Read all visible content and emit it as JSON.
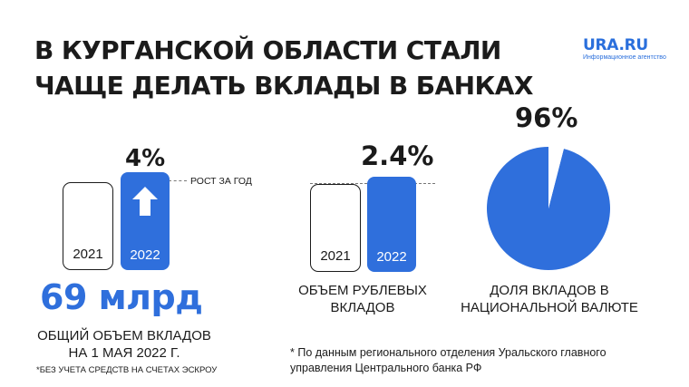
{
  "header": {
    "title_line1": "В КУРГАНСКОЙ ОБЛАСТИ СТАЛИ",
    "title_line2": "ЧАЩЕ ДЕЛАТЬ ВКЛАДЫ В БАНКАХ",
    "logo_text": "URA.RU",
    "logo_sub": "Информационное агентство"
  },
  "colors": {
    "accent": "#2f6fdc",
    "ink": "#1b1b1b",
    "background": "#ffffff"
  },
  "chart_data": [
    {
      "type": "bar",
      "categories": [
        "2021",
        "2022"
      ],
      "values": [
        100,
        104
      ],
      "value_label": "4%",
      "annotation": "РОСТ ЗА ГОД",
      "icon": "arrow-up-icon",
      "headline_value": "69 млрд",
      "caption_line1": "ОБЩИЙ ОБЪЕМ ВКЛАДОВ",
      "caption_line2": "НА 1 МАЯ 2022 Г.",
      "note": "*БЕЗ УЧЕТА СРЕДСТВ НА СЧЕТАХ ЭСКРОУ"
    },
    {
      "type": "bar",
      "categories": [
        "2021",
        "2022"
      ],
      "values": [
        100,
        102.4
      ],
      "value_label": "2.4%",
      "caption_line1": "ОБЪЕМ РУБЛЕВЫХ",
      "caption_line2": "ВКЛАДОВ"
    },
    {
      "type": "pie",
      "values": [
        96,
        4
      ],
      "value_label": "96%",
      "caption_line1": "ДОЛЯ ВКЛАДОВ В",
      "caption_line2": "НАЦИОНАЛЬНОЙ ВАЛЮТЕ"
    }
  ],
  "footnote": {
    "line1": "* По данным регионального отделения Уральского главного",
    "line2": "управления Центрального банка РФ"
  }
}
